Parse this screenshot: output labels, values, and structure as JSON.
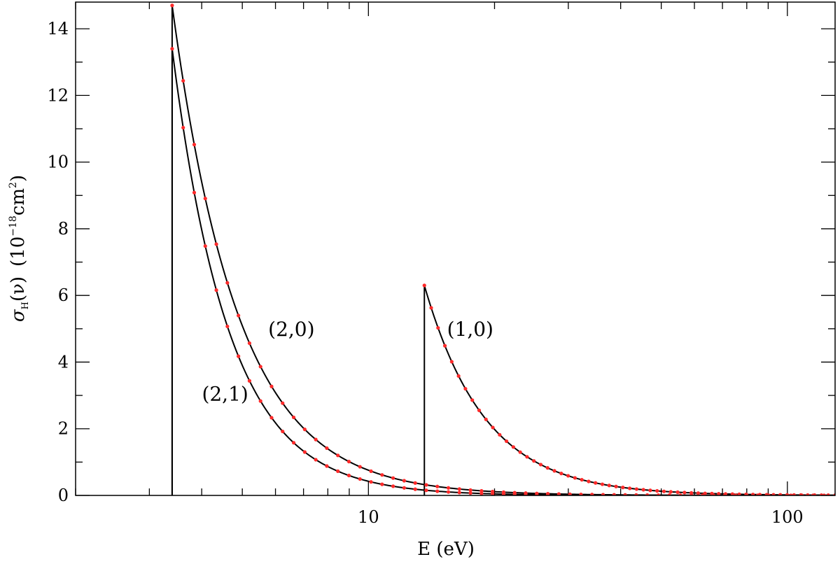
{
  "chart_data": {
    "type": "line",
    "title": "",
    "xlabel": "E (eV)",
    "ylabel_parts": {
      "sym": "σ",
      "sub": "H",
      "arg": "(ν)",
      "units_open": "(10",
      "units_exp": "−18",
      "units_mid": "cm",
      "units_exp2": "2",
      "units_close": ")"
    },
    "x_scale": "log",
    "xlim": [
      2,
      130
    ],
    "ylim": [
      0,
      14.8
    ],
    "x_major_ticks": [
      {
        "value": 10,
        "label": "10"
      },
      {
        "value": 100,
        "label": "100"
      }
    ],
    "y_ticks": [
      {
        "value": 0,
        "label": "0"
      },
      {
        "value": 2,
        "label": "2"
      },
      {
        "value": 4,
        "label": "4"
      },
      {
        "value": 6,
        "label": "6"
      },
      {
        "value": 8,
        "label": "8"
      },
      {
        "value": 10,
        "label": "10"
      },
      {
        "value": 12,
        "label": "12"
      },
      {
        "value": 14,
        "label": "14"
      }
    ],
    "grid": false,
    "line_color": "#000000",
    "marker_color": "#ff2a2a",
    "series": [
      {
        "label": "(2,0)",
        "threshold": 3.4,
        "peak": 14.7,
        "exponent": 2.75
      },
      {
        "label": "(2,1)",
        "threshold": 3.4,
        "peak": 13.4,
        "exponent": 3.2
      },
      {
        "label": "(1,0)",
        "threshold": 13.6,
        "peak": 6.3,
        "exponent": 3.0
      }
    ],
    "annotations": [
      {
        "text": "(2,0)",
        "x": 6.55,
        "y": 5.0
      },
      {
        "text": "(2,1)",
        "x": 4.55,
        "y": 3.05
      },
      {
        "text": "(1,0)",
        "x": 17.5,
        "y": 5.0
      }
    ]
  }
}
